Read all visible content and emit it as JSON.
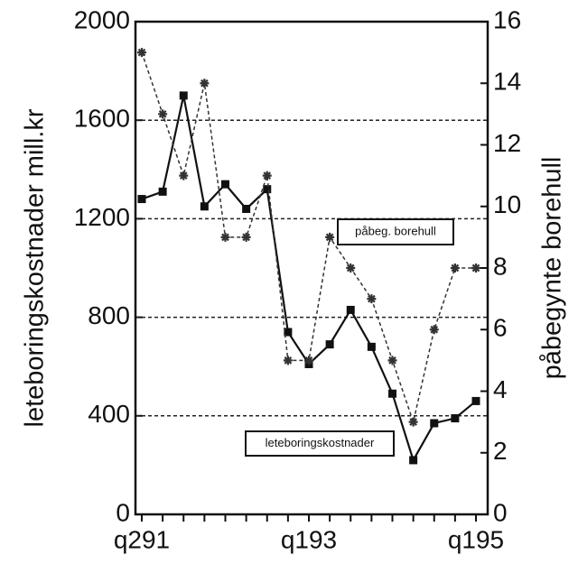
{
  "chart_data": {
    "type": "line",
    "categories": [
      "q291",
      null,
      null,
      null,
      null,
      null,
      null,
      null,
      "q193",
      null,
      null,
      null,
      null,
      null,
      null,
      null,
      "q195"
    ],
    "ylabel": "leteboringskostnader mill.kr",
    "y2label": "påbegynte borehull",
    "ylim": [
      0,
      2000
    ],
    "yticks": [
      0,
      400,
      800,
      1200,
      1600,
      2000
    ],
    "y2lim": [
      0,
      16
    ],
    "y2ticks": [
      0,
      2,
      4,
      6,
      8,
      10,
      12,
      14,
      16
    ],
    "grid": true,
    "series": [
      {
        "name": "leteboringskostnader",
        "color": "#111111",
        "linestyle": "solid",
        "marker": "square",
        "values": [
          1280,
          1310,
          1700,
          1250,
          1340,
          1240,
          1320,
          740,
          610,
          690,
          830,
          680,
          490,
          220,
          370,
          390,
          460
        ]
      },
      {
        "name": "påbeg. borehull",
        "color": "#333333",
        "linestyle": "dashed",
        "marker": "star",
        "axis": "y2",
        "values": [
          15,
          13,
          11,
          14,
          9,
          9,
          11,
          5,
          5,
          9,
          8,
          7,
          5,
          3,
          6,
          8,
          8
        ]
      }
    ]
  }
}
